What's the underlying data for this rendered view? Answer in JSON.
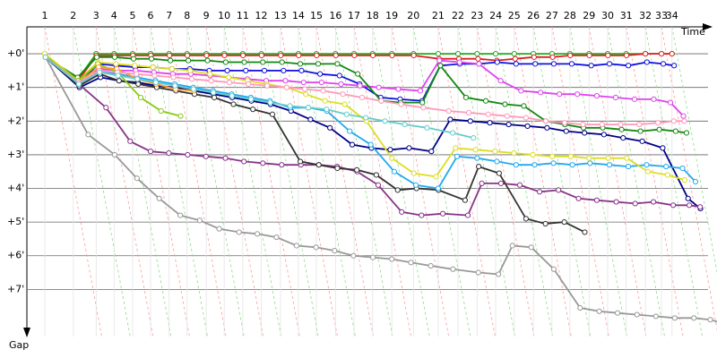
{
  "chart_data": {
    "type": "line",
    "x_label": "Time",
    "y_label": "Gap",
    "xlim": [
      0,
      111
    ],
    "xticks": [
      {
        "value": 2.9,
        "label": "1"
      },
      {
        "value": 7.5,
        "label": "2"
      },
      {
        "value": 11.2,
        "label": "3"
      },
      {
        "value": 14.1,
        "label": "4"
      },
      {
        "value": 17.1,
        "label": "5"
      },
      {
        "value": 20.0,
        "label": "6"
      },
      {
        "value": 23.0,
        "label": "7"
      },
      {
        "value": 25.9,
        "label": "8"
      },
      {
        "value": 29.0,
        "label": "9"
      },
      {
        "value": 31.9,
        "label": "10"
      },
      {
        "value": 34.9,
        "label": "11"
      },
      {
        "value": 37.9,
        "label": "12"
      },
      {
        "value": 41.0,
        "label": "13"
      },
      {
        "value": 43.9,
        "label": "14"
      },
      {
        "value": 46.8,
        "label": "15"
      },
      {
        "value": 49.9,
        "label": "16"
      },
      {
        "value": 52.9,
        "label": "17"
      },
      {
        "value": 55.9,
        "label": "18"
      },
      {
        "value": 59.0,
        "label": "19"
      },
      {
        "value": 62.5,
        "label": "20"
      },
      {
        "value": 66.5,
        "label": "21"
      },
      {
        "value": 69.7,
        "label": "22"
      },
      {
        "value": 72.8,
        "label": "23"
      },
      {
        "value": 75.8,
        "label": "24"
      },
      {
        "value": 78.8,
        "label": "25"
      },
      {
        "value": 81.9,
        "label": "26"
      },
      {
        "value": 84.9,
        "label": "27"
      },
      {
        "value": 87.8,
        "label": "28"
      },
      {
        "value": 90.9,
        "label": "29"
      },
      {
        "value": 93.9,
        "label": "30"
      },
      {
        "value": 96.9,
        "label": "31"
      },
      {
        "value": 100.0,
        "label": "32"
      },
      {
        "value": 102.6,
        "label": "33"
      },
      {
        "value": 104.3,
        "label": "34"
      }
    ],
    "ylim": [
      -0.8,
      8.4
    ],
    "yticks": [
      {
        "value": 0,
        "label": "+0'"
      },
      {
        "value": 1,
        "label": "+1'"
      },
      {
        "value": 2,
        "label": "+2'"
      },
      {
        "value": 3,
        "label": "+3'"
      },
      {
        "value": 4,
        "label": "+4'"
      },
      {
        "value": 5,
        "label": "+5'"
      },
      {
        "value": 6,
        "label": "+6'"
      },
      {
        "value": 7,
        "label": "+7'"
      }
    ],
    "grid": true,
    "series": [
      {
        "color": "#22aa22",
        "values": [
          0.1,
          0.75,
          0,
          0,
          0,
          0,
          0,
          0,
          0,
          0,
          0,
          0,
          0,
          0,
          0,
          0,
          0,
          0,
          0,
          0,
          0,
          0,
          0,
          0,
          0,
          0,
          0,
          0,
          0,
          0,
          0,
          0,
          0,
          0
        ]
      },
      {
        "color": "#dd2222",
        "values": [
          0.1,
          0.8,
          0.05,
          0.05,
          0.05,
          0.05,
          0.05,
          0.05,
          0.05,
          0.05,
          0.05,
          0.05,
          0.05,
          0.05,
          0.05,
          0.05,
          0.05,
          0.05,
          0.05,
          0.05,
          0.15,
          0.15,
          0.15,
          0.2,
          0.15,
          0.1,
          0.1,
          0.05,
          0.05,
          0.05,
          0.05,
          0,
          0,
          0
        ]
      },
      {
        "color": "#1010dd",
        "values": [
          0.1,
          0.9,
          0.3,
          0.35,
          0.4,
          0.4,
          0.45,
          0.45,
          0.5,
          0.5,
          0.5,
          0.5,
          0.5,
          0.5,
          0.6,
          0.65,
          0.9,
          1.3,
          1.35,
          1.4,
          0.35,
          0.3,
          0.3,
          0.25,
          0.3,
          0.3,
          0.3,
          0.3,
          0.35,
          0.3,
          0.35,
          0.25,
          0.3,
          0.35
        ]
      },
      {
        "color": "#dd44ee",
        "values": [
          0.1,
          0.95,
          0.45,
          0.5,
          0.5,
          0.55,
          0.6,
          0.6,
          0.65,
          0.7,
          0.75,
          0.8,
          0.8,
          0.85,
          0.85,
          0.9,
          0.95,
          1.0,
          1.05,
          1.1,
          0.2,
          0.25,
          0.3,
          0.8,
          1.1,
          1.15,
          1.2,
          1.2,
          1.25,
          1.3,
          1.35,
          1.35,
          1.45,
          1.85
        ]
      },
      {
        "color": "#118811",
        "values": [
          0.1,
          0.7,
          0.1,
          0.1,
          0.15,
          0.15,
          0.2,
          0.2,
          0.2,
          0.25,
          0.25,
          0.25,
          0.25,
          0.3,
          0.3,
          0.3,
          0.6,
          1.4,
          1.45,
          1.45,
          0.35,
          1.3,
          1.4,
          1.5,
          1.55,
          2.0,
          2.1,
          2.2,
          2.2,
          2.25,
          2.3,
          2.25,
          2.3,
          2.35
        ]
      },
      {
        "color": "#000088",
        "values": [
          0.1,
          1.0,
          0.7,
          0.8,
          0.85,
          0.95,
          1.0,
          1.1,
          1.2,
          1.3,
          1.4,
          1.5,
          1.7,
          1.95,
          2.2,
          2.7,
          2.8,
          2.85,
          2.8,
          2.9,
          1.95,
          2.0,
          2.05,
          2.1,
          2.15,
          2.2,
          2.3,
          2.35,
          2.4,
          2.5,
          2.6,
          2.8,
          4.3,
          4.6
        ]
      },
      {
        "color": "#999999",
        "values": [
          0.1,
          2.4,
          3.0,
          3.7,
          4.3,
          4.8,
          4.95,
          5.2,
          5.3,
          5.35,
          5.45,
          5.7,
          5.75,
          5.85,
          6.0,
          6.05,
          6.1,
          6.2,
          6.3,
          6.4,
          6.5,
          6.55,
          5.7,
          5.75,
          6.4,
          7.55,
          7.65,
          7.7,
          7.75,
          7.8,
          7.85,
          7.85,
          7.9,
          8.0
        ]
      },
      {
        "color": "#883388",
        "values": [
          0.1,
          0.9,
          1.6,
          2.6,
          2.9,
          2.95,
          3.0,
          3.05,
          3.1,
          3.2,
          3.25,
          3.3,
          3.3,
          3.3,
          3.35,
          3.5,
          3.9,
          4.7,
          4.8,
          4.75,
          4.8,
          3.85,
          3.85,
          3.9,
          4.1,
          4.05,
          4.3,
          4.35,
          4.4,
          4.45,
          4.4,
          4.5,
          4.5,
          4.55
        ]
      },
      {
        "color": "#333333",
        "values": [
          0.1,
          0.95,
          0.6,
          0.8,
          0.9,
          1.0,
          1.1,
          1.2,
          1.3,
          1.5,
          1.65,
          1.8,
          3.2,
          3.3,
          3.4,
          3.45,
          3.6,
          4.05,
          4.0,
          4.05,
          4.35,
          3.35,
          3.55,
          4.9,
          5.05,
          5.0,
          5.3,
          null,
          null,
          null,
          null,
          null,
          null,
          null
        ]
      },
      {
        "color": "#22aaee",
        "values": [
          0.1,
          0.9,
          0.5,
          0.6,
          0.7,
          0.8,
          0.9,
          1.0,
          1.1,
          1.2,
          1.3,
          1.4,
          1.6,
          1.6,
          1.7,
          2.3,
          2.7,
          3.5,
          3.9,
          4.0,
          3.05,
          3.1,
          3.2,
          3.3,
          3.3,
          3.25,
          3.3,
          3.25,
          3.3,
          3.35,
          3.3,
          3.35,
          3.4,
          3.8
        ]
      },
      {
        "color": "#dddd22",
        "values": [
          0,
          0.8,
          0.25,
          0.3,
          0.35,
          0.4,
          0.45,
          0.5,
          0.6,
          0.7,
          0.8,
          0.9,
          1.0,
          1.2,
          1.4,
          1.5,
          2.0,
          3.1,
          3.55,
          3.65,
          2.8,
          2.85,
          2.9,
          2.95,
          3.0,
          3.05,
          3.05,
          3.1,
          3.1,
          3.1,
          3.5,
          3.6,
          3.75,
          null
        ]
      },
      {
        "color": "#88cc11",
        "values": [
          0.1,
          0.8,
          0.3,
          0.55,
          1.3,
          1.7,
          1.85,
          null,
          null,
          null,
          null,
          null,
          null,
          null,
          null,
          null,
          null,
          null,
          null,
          null,
          null,
          null,
          null,
          null,
          null,
          null,
          null,
          null,
          null,
          null,
          null,
          null,
          null,
          null
        ]
      },
      {
        "color": "#ff9922",
        "values": [
          0.1,
          0.85,
          0.4,
          0.45,
          0.75,
          0.9,
          1.05,
          1.1,
          null,
          null,
          null,
          null,
          null,
          null,
          null,
          null,
          null,
          null,
          null,
          null,
          null,
          null,
          null,
          null,
          null,
          null,
          null,
          null,
          null,
          null,
          null,
          null,
          null,
          null
        ]
      },
      {
        "color": "#ff99bb",
        "values": [
          0.1,
          0.85,
          0.5,
          0.55,
          0.6,
          0.65,
          0.7,
          0.75,
          0.8,
          0.85,
          0.9,
          0.95,
          1.0,
          1.05,
          1.1,
          1.2,
          1.3,
          1.4,
          1.5,
          1.6,
          1.7,
          1.75,
          1.8,
          1.85,
          1.9,
          2.0,
          2.05,
          2.1,
          2.1,
          2.1,
          2.1,
          2.05,
          2.0,
          2.0
        ]
      },
      {
        "color": "#66cccc",
        "values": [
          0.1,
          0.9,
          0.55,
          0.65,
          0.75,
          0.85,
          0.95,
          1.05,
          1.15,
          1.25,
          1.35,
          1.45,
          1.55,
          1.6,
          1.65,
          1.8,
          1.9,
          2.0,
          2.1,
          2.2,
          2.35,
          2.5,
          null,
          null,
          null,
          null,
          null,
          null,
          null,
          null,
          null,
          null,
          null,
          null
        ]
      }
    ]
  }
}
